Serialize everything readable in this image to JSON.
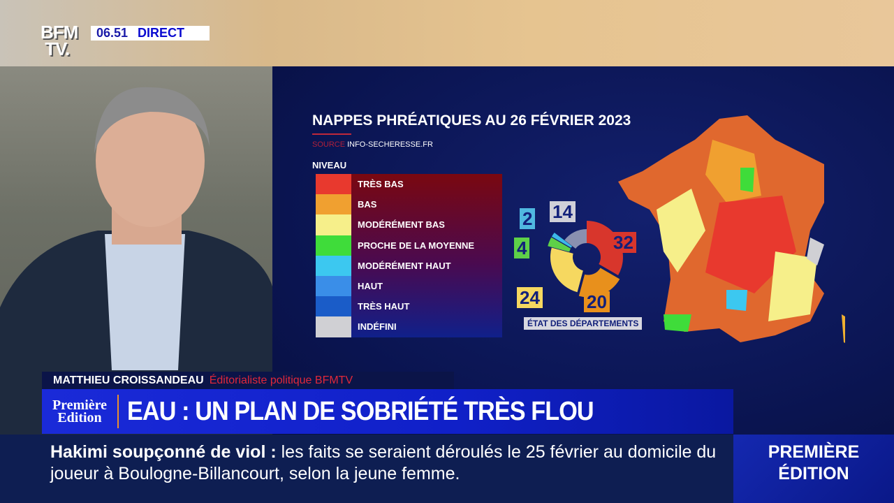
{
  "channel": {
    "logo": "BFM TV.",
    "time": "06.51",
    "live": "DIRECT"
  },
  "graphic": {
    "title": "NAPPES PHRÉATIQUES AU 26 FÉVRIER 2023",
    "source_label": "SOURCE",
    "source": "INFO-SECHERESSE.FR",
    "legend_title": "NIVEAU",
    "legend": [
      {
        "label": "TRÈS BAS",
        "color": "#e8392e"
      },
      {
        "label": "BAS",
        "color": "#f0a030"
      },
      {
        "label": "MODÉRÉMENT BAS",
        "color": "#f6ef8a"
      },
      {
        "label": "PROCHE DE LA MOYENNE",
        "color": "#3fdc3a"
      },
      {
        "label": "MODÉRÉMENT HAUT",
        "color": "#3cc8f0"
      },
      {
        "label": "HAUT",
        "color": "#3a8ee8"
      },
      {
        "label": "TRÈS HAUT",
        "color": "#1a5cc8"
      },
      {
        "label": "INDÉFINI",
        "color": "#d0d0d4"
      }
    ],
    "donut_caption": "ÉTAT DES DÉPARTEMENTS"
  },
  "chart_data": {
    "type": "pie",
    "subtype": "donut",
    "title": "ÉTAT DES DÉPARTEMENTS",
    "categories": [
      "TRÈS BAS",
      "BAS",
      "MODÉRÉMENT BAS",
      "PROCHE DE LA MOYENNE",
      "MODÉRÉMENT HAUT",
      "INDÉFINI"
    ],
    "values": [
      32,
      20,
      24,
      4,
      2,
      14
    ],
    "labels": [
      "32",
      "20",
      "24",
      "4",
      "2",
      "14"
    ],
    "colors": [
      "#d8362c",
      "#e8901c",
      "#f6d860",
      "#5ed048",
      "#3cb8e8",
      "#8a90b0"
    ]
  },
  "lower_third": {
    "name": "MATTHIEU CROISSANDEAU",
    "role": "Éditorialiste politique BFMTV",
    "show_logo": "Première Edition",
    "headline": "EAU : UN PLAN DE SOBRIÉTÉ TRÈS FLOU"
  },
  "ticker": {
    "lead": "Hakimi soupçonné de viol :",
    "text": " les faits se seraient déroulés le 25 février au domicile du joueur à Boulogne-Billancourt, selon la jeune femme.",
    "box": "PREMIÈRE ÉDITION"
  }
}
